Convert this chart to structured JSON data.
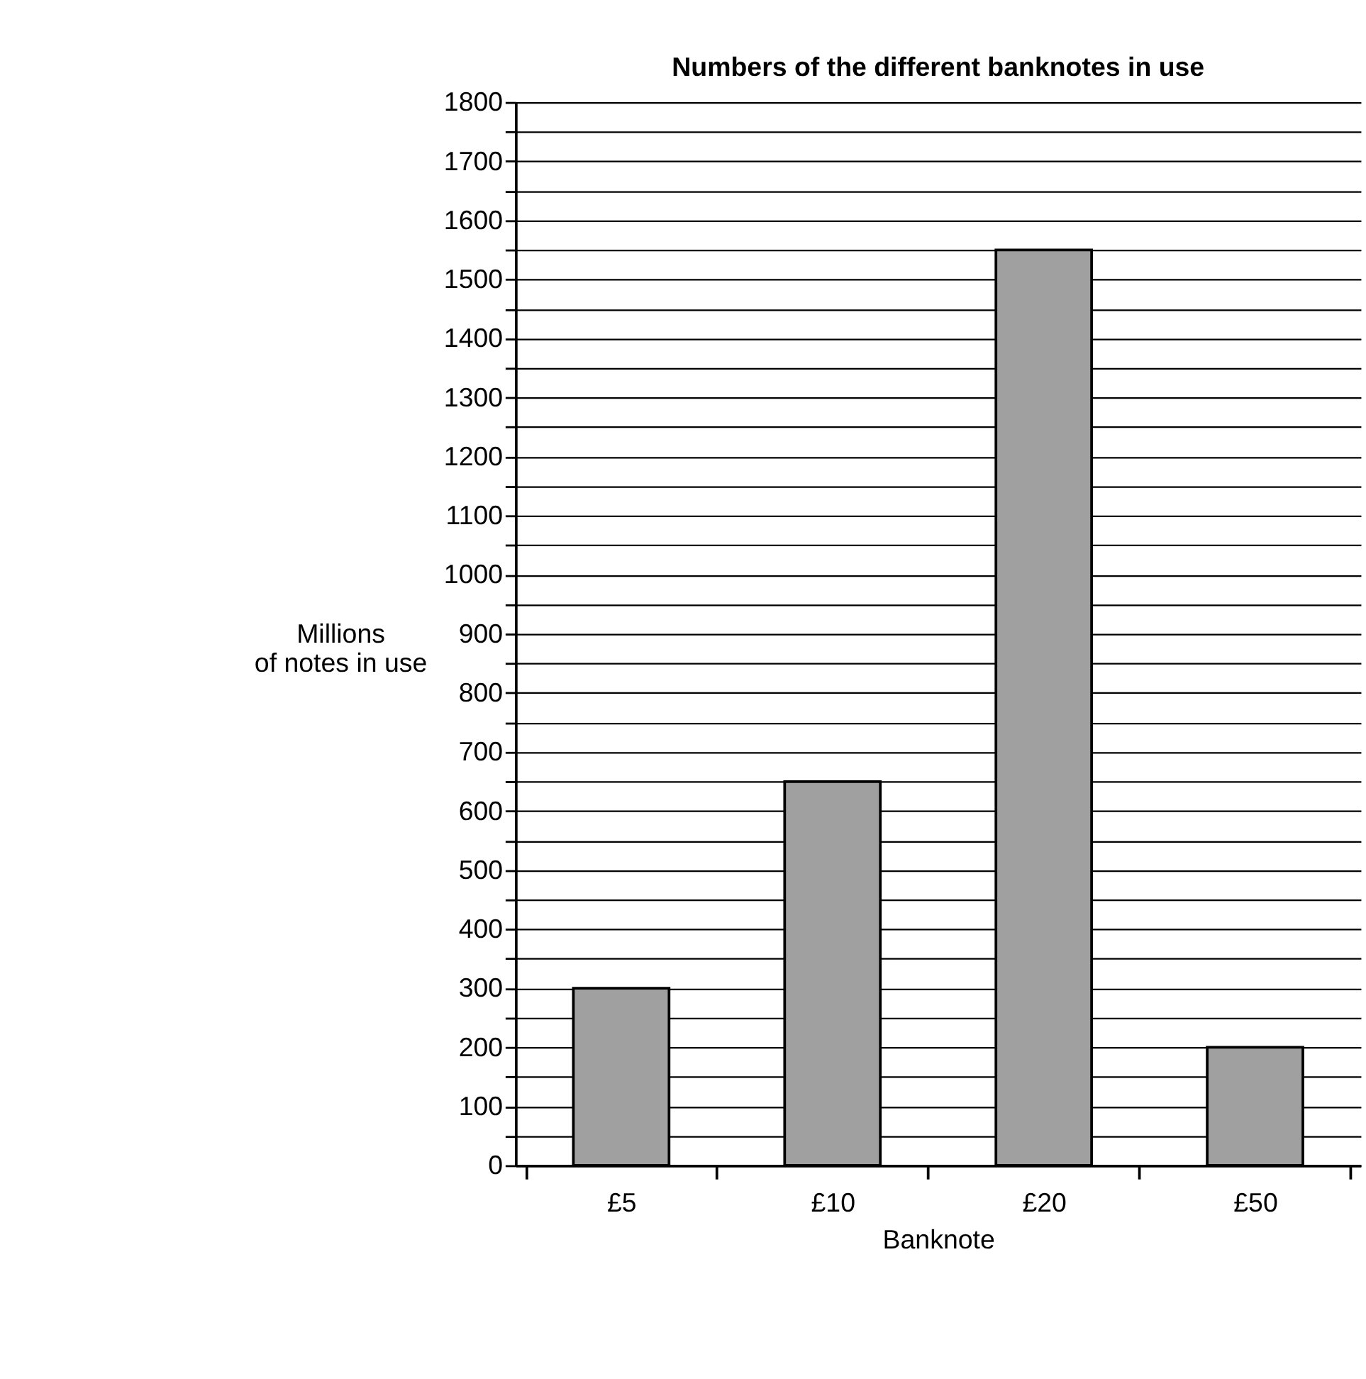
{
  "chart_data": {
    "type": "bar",
    "title": "Numbers of the different banknotes in use",
    "xlabel": "Banknote",
    "ylabel": "Millions\nof notes in use",
    "categories": [
      "£5",
      "£10",
      "£20",
      "£50"
    ],
    "values": [
      300,
      650,
      1550,
      200
    ],
    "color": "#a0a0a0",
    "ylim": [
      0,
      1800
    ],
    "yticks": [
      0,
      {
        "value": 50,
        "label": null
      },
      100,
      {
        "value": 150,
        "label": null
      },
      200,
      {
        "value": 250,
        "label": null
      },
      300,
      {
        "value": 350,
        "label": null
      },
      400,
      {
        "value": 450,
        "label": null
      },
      500,
      {
        "value": 550,
        "label": null
      },
      600,
      {
        "value": 650,
        "label": null
      },
      700,
      {
        "value": 750,
        "label": null
      },
      800,
      {
        "value": 850,
        "label": null
      },
      900,
      {
        "value": 950,
        "label": null
      },
      1000,
      {
        "value": 1050,
        "label": null
      },
      1100,
      {
        "value": 1150,
        "label": null
      },
      1200,
      {
        "value": 1250,
        "label": null
      },
      1300,
      {
        "value": 1350,
        "label": null
      },
      1400,
      {
        "value": 1450,
        "label": null
      },
      1500,
      {
        "value": 1550,
        "label": null
      },
      1600,
      {
        "value": 1650,
        "label": null
      },
      1700,
      {
        "value": 1750,
        "label": null
      },
      1800
    ],
    "grid": "y"
  }
}
